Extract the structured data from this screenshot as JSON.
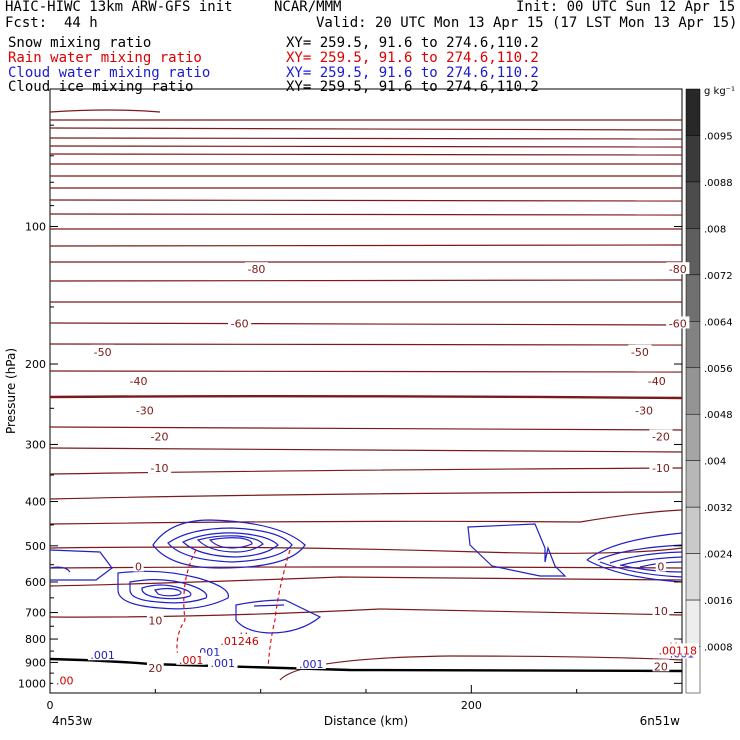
{
  "header": {
    "model": "HAIC-HIWC 13km ARW-GFS init",
    "org": "NCAR/MMM",
    "init": "Init: 00 UTC Sun 12 Apr 15",
    "fcst_label": "Fcst:",
    "fcst_value": "44 h",
    "valid": "Valid: 20 UTC Mon 13 Apr 15 (17 LST Mon 13 Apr 15)"
  },
  "fields": [
    {
      "name": "Snow mixing ratio",
      "xy": "XY= 259.5, 91.6 to 274.6,110.2",
      "color": "#000000"
    },
    {
      "name": "Rain water mixing ratio",
      "xy": "XY= 259.5, 91.6 to 274.6,110.2",
      "color": "#dd0000"
    },
    {
      "name": "Cloud water mixing ratio",
      "xy": "XY= 259.5, 91.6 to 274.6,110.2",
      "color": "#1a1ad0"
    },
    {
      "name": "Cloud ice mixing ratio",
      "xy": "XY= 259.5, 91.6 to 274.6,110.2",
      "color": "#000000"
    }
  ],
  "chart_data": {
    "type": "contour",
    "xlabel": "Distance (km)",
    "ylabel": "Pressure (hPa)",
    "x_ticks": [
      "0",
      "200"
    ],
    "x_range": [
      0,
      300
    ],
    "y_ticks": [
      "100",
      "200",
      "300",
      "400",
      "500",
      "600",
      "700",
      "800",
      "900",
      "1000"
    ],
    "y_range": [
      50,
      1050
    ],
    "y_scale": "log",
    "left_endpoint": "4n53w",
    "right_endpoint": "6n51w",
    "colorbar": {
      "unit": "g kg⁻¹",
      "labels": [
        ".0095",
        ".0088",
        ".008",
        ".0072",
        ".0064",
        ".0056",
        ".0048",
        ".004",
        ".0032",
        ".0024",
        ".0016",
        ".0008"
      ],
      "values": [
        0.0095,
        0.0088,
        0.008,
        0.0072,
        0.0064,
        0.0056,
        0.0048,
        0.004,
        0.0032,
        0.0024,
        0.0016,
        0.0008
      ]
    },
    "temperature_contour_labels": [
      {
        "text": "-80",
        "x": 98,
        "p": 124
      },
      {
        "text": "-80",
        "x": 298,
        "p": 124
      },
      {
        "text": "-60",
        "x": 90,
        "p": 163
      },
      {
        "text": "-60",
        "x": 298,
        "p": 163
      },
      {
        "text": "-50",
        "x": 25,
        "p": 188
      },
      {
        "text": "-50",
        "x": 280,
        "p": 188
      },
      {
        "text": "-40",
        "x": 42,
        "p": 218
      },
      {
        "text": "-40",
        "x": 288,
        "p": 218
      },
      {
        "text": "-30",
        "x": 45,
        "p": 253
      },
      {
        "text": "-30",
        "x": 282,
        "p": 253
      },
      {
        "text": "-20",
        "x": 52,
        "p": 288
      },
      {
        "text": "-20",
        "x": 290,
        "p": 288
      },
      {
        "text": "-10",
        "x": 52,
        "p": 338
      },
      {
        "text": "-10",
        "x": 290,
        "p": 338
      },
      {
        "text": "0",
        "x": 42,
        "p": 555
      },
      {
        "text": "0",
        "x": 290,
        "p": 555
      },
      {
        "text": "10",
        "x": 50,
        "p": 728
      },
      {
        "text": "10",
        "x": 290,
        "p": 695
      },
      {
        "text": "20",
        "x": 50,
        "p": 925
      },
      {
        "text": "20",
        "x": 290,
        "p": 918
      }
    ],
    "cloud_water_labels": [
      {
        "text": ".001",
        "x": 25,
        "p": 868
      },
      {
        "text": ".001",
        "x": 75,
        "p": 853
      },
      {
        "text": ".001",
        "x": 82,
        "p": 902
      },
      {
        "text": ".001",
        "x": 124,
        "p": 907
      },
      {
        "text": ".001",
        "x": 300,
        "p": 860
      }
    ],
    "rain_labels": [
      {
        "text": ".001",
        "x": 67,
        "p": 888
      },
      {
        "text": "H",
        "x": 92,
        "p": 790
      },
      {
        "text": ".01246",
        "x": 90,
        "p": 808
      },
      {
        "text": "H",
        "x": 296,
        "p": 830
      },
      {
        "text": ".00118",
        "x": 298,
        "p": 847
      },
      {
        "text": "H",
        "x": 7,
        "p": 972
      },
      {
        "text": ".00",
        "x": 7,
        "p": 986
      }
    ]
  }
}
